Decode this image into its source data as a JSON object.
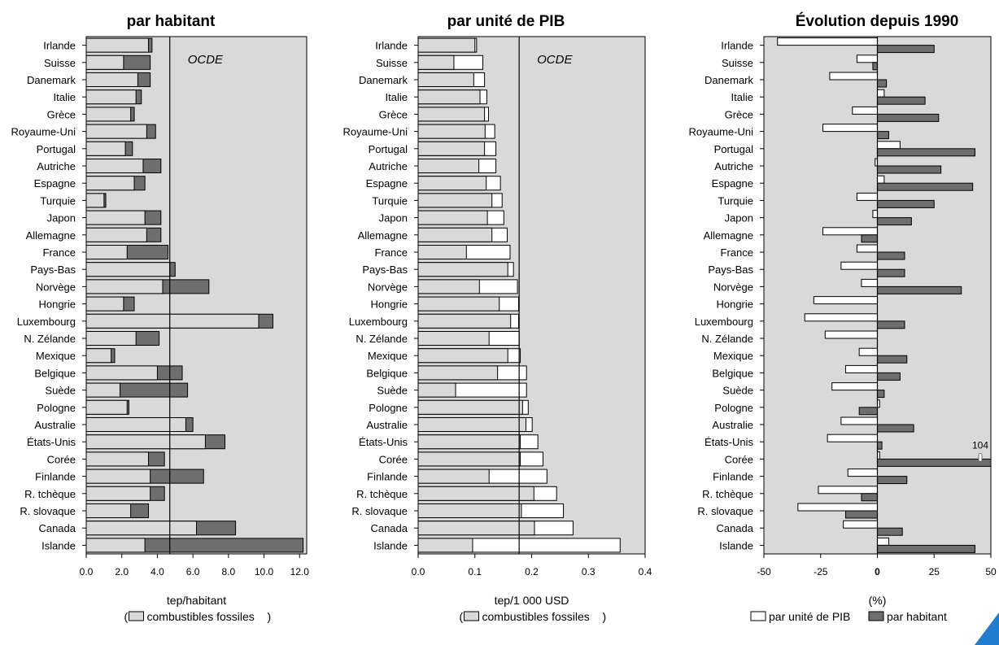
{
  "countries": [
    "Irlande",
    "Suisse",
    "Danemark",
    "Italie",
    "Grèce",
    "Royaume-Uni",
    "Portugal",
    "Autriche",
    "Espagne",
    "Turquie",
    "Japon",
    "Allemagne",
    "France",
    "Pays-Bas",
    "Norvège",
    "Hongrie",
    "Luxembourg",
    "N. Zélande",
    "Mexique",
    "Belgique",
    "Suède",
    "Pologne",
    "Australie",
    "États-Unis",
    "Corée",
    "Finlande",
    "R. tchèque",
    "R. slovaque",
    "Canada",
    "Islande"
  ],
  "chart_data": [
    {
      "type": "bar",
      "title": "par habitant",
      "xlabel": "tep/habitant",
      "legend_text": "combustibles fossiles",
      "reference_label": "OCDE",
      "reference_value": 4.7,
      "xlim": [
        0,
        12.4
      ],
      "ticks": [
        "0.0",
        "2.0",
        "4.0",
        "6.0",
        "8.0",
        "10.0",
        "12.0"
      ],
      "tick_values": [
        0,
        2,
        4,
        6,
        8,
        10,
        12
      ],
      "series": [
        {
          "name": "combustibles fossiles",
          "values": [
            3.5,
            2.1,
            2.9,
            2.8,
            2.5,
            3.4,
            2.2,
            3.2,
            2.7,
            1.0,
            3.3,
            3.4,
            2.3,
            4.7,
            4.3,
            2.1,
            9.7,
            2.8,
            1.4,
            4.0,
            1.9,
            2.3,
            5.6,
            6.7,
            3.5,
            3.6,
            3.6,
            2.5,
            6.2,
            3.3
          ]
        },
        {
          "name": "total",
          "values": [
            3.7,
            3.6,
            3.6,
            3.1,
            2.7,
            3.9,
            2.6,
            4.2,
            3.3,
            1.1,
            4.2,
            4.2,
            4.6,
            5.0,
            6.9,
            2.7,
            10.5,
            4.1,
            1.6,
            5.4,
            5.7,
            2.4,
            6.0,
            7.8,
            4.4,
            6.6,
            4.4,
            3.5,
            8.4,
            12.2
          ]
        }
      ],
      "colors": {
        "fossil": "#d9d9d9",
        "total": "#6e6e6e"
      }
    },
    {
      "type": "bar",
      "title": "par unité de PIB",
      "xlabel": "tep/1 000 USD",
      "legend_text": "combustibles fossiles",
      "reference_label": "OCDE",
      "reference_value": 0.178,
      "xlim": [
        0,
        0.4
      ],
      "ticks": [
        "0.0",
        "0.1",
        "0.2",
        "0.3",
        "0.4"
      ],
      "tick_values": [
        0,
        0.1,
        0.2,
        0.3,
        0.4
      ],
      "series": [
        {
          "name": "combustibles fossiles",
          "values": [
            0.1,
            0.063,
            0.098,
            0.109,
            0.117,
            0.118,
            0.117,
            0.107,
            0.12,
            0.13,
            0.122,
            0.13,
            0.085,
            0.158,
            0.108,
            0.143,
            0.163,
            0.125,
            0.158,
            0.14,
            0.066,
            0.184,
            0.19,
            0.18,
            0.18,
            0.125,
            0.204,
            0.182,
            0.205,
            0.096
          ]
        },
        {
          "name": "total",
          "values": [
            0.103,
            0.114,
            0.117,
            0.121,
            0.124,
            0.135,
            0.137,
            0.137,
            0.145,
            0.148,
            0.151,
            0.157,
            0.162,
            0.168,
            0.175,
            0.177,
            0.177,
            0.178,
            0.18,
            0.191,
            0.191,
            0.194,
            0.201,
            0.211,
            0.22,
            0.227,
            0.244,
            0.256,
            0.273,
            0.356
          ]
        }
      ],
      "colors": {
        "fossil": "#d9d9d9",
        "total": "#ffffff"
      }
    },
    {
      "type": "bar",
      "title": "Évolution depuis 1990",
      "xlabel": "(%)",
      "xlim": [
        -50,
        50
      ],
      "ticks": [
        "-50",
        "-25",
        "0",
        "25",
        "50"
      ],
      "tick_values": [
        -50,
        -25,
        0,
        25,
        50
      ],
      "annotation": "104",
      "series": [
        {
          "name": "par unité de PIB",
          "values": [
            -44,
            -9,
            -21,
            3,
            -11,
            -24,
            10,
            -1,
            3,
            -9,
            -2,
            -24,
            -9,
            -16,
            -7,
            -28,
            -32,
            -23,
            -8,
            -14,
            -20,
            1,
            -16,
            -22,
            1,
            -13,
            -26,
            -35,
            -15,
            5
          ]
        },
        {
          "name": "par habitant",
          "values": [
            25,
            -2,
            4,
            21,
            27,
            5,
            43,
            28,
            42,
            25,
            15,
            -7,
            12,
            12,
            37,
            0,
            12,
            0,
            13,
            10,
            3,
            -8,
            16,
            2,
            104,
            13,
            -7,
            -14,
            11,
            43
          ]
        }
      ],
      "colors": {
        "gdp": "#ffffff",
        "capita": "#6e6e6e"
      }
    }
  ]
}
